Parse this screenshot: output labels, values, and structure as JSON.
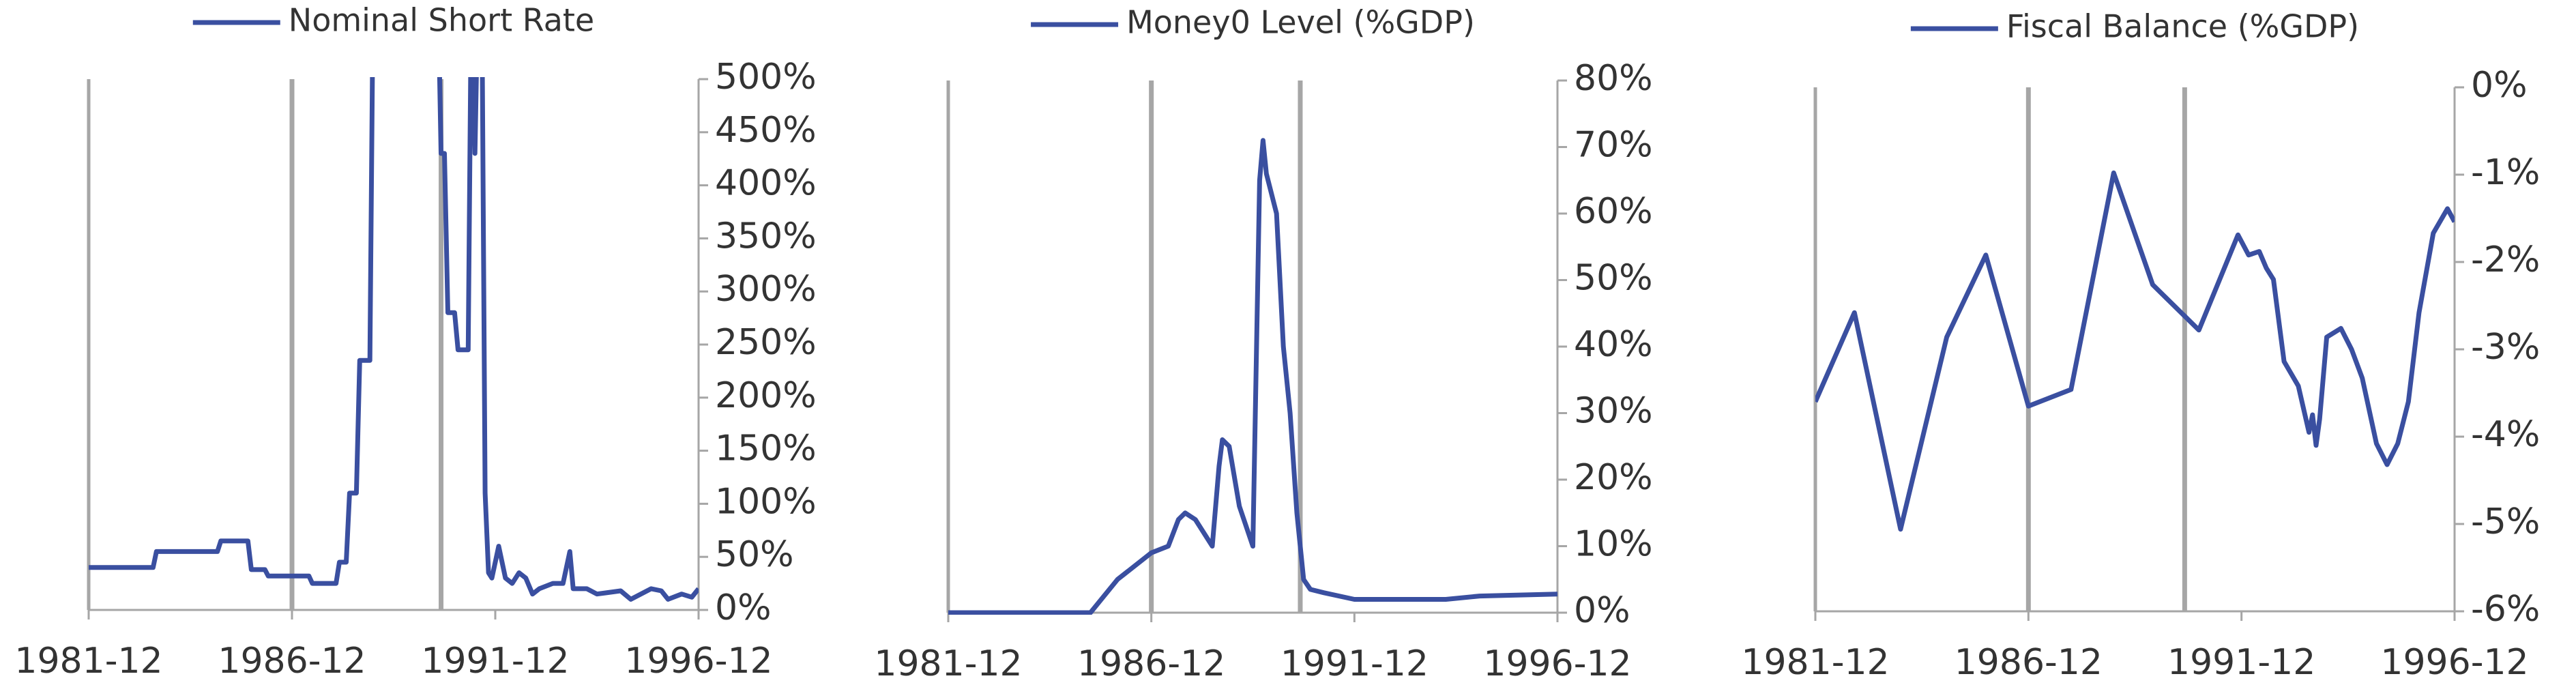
{
  "chart_data": [
    {
      "type": "line",
      "xlim": [
        "1981-12",
        "1996-12"
      ],
      "xticks": [
        "1981-12",
        "1986-12",
        "1991-12",
        "1996-12"
      ],
      "ylim": [
        0,
        500
      ],
      "yticks": [
        {
          "value": 0,
          "label": "0%"
        },
        {
          "value": 50,
          "label": "50%"
        },
        {
          "value": 100,
          "label": "100%"
        },
        {
          "value": 150,
          "label": "150%"
        },
        {
          "value": 200,
          "label": "200%"
        },
        {
          "value": 250,
          "label": "250%"
        },
        {
          "value": 300,
          "label": "300%"
        },
        {
          "value": 350,
          "label": "350%"
        },
        {
          "value": 400,
          "label": "400%"
        },
        {
          "value": 450,
          "label": "450%"
        },
        {
          "value": 500,
          "label": "500%"
        }
      ],
      "vlines": [
        "1986-12",
        "1990-08"
      ],
      "series": [
        {
          "name": "Nominal Short Rate",
          "color": "#3a4fa0",
          "x": [
            "1981-12",
            "1983-07",
            "1983-08",
            "1985-02",
            "1985-03",
            "1985-11",
            "1985-12",
            "1986-04",
            "1986-05",
            "1987-05",
            "1987-06",
            "1988-01",
            "1988-02",
            "1988-04",
            "1988-05",
            "1988-07",
            "1988-08",
            "1988-11",
            "1988-12",
            "1990-07",
            "1990-08",
            "1990-09",
            "1990-10",
            "1990-12",
            "1991-01",
            "1991-04",
            "1991-05",
            "1991-06",
            "1991-07",
            "1991-08",
            "1991-09",
            "1991-10",
            "1991-11",
            "1992-01",
            "1992-03",
            "1992-05",
            "1992-07",
            "1992-09",
            "1992-11",
            "1993-01",
            "1993-05",
            "1993-08",
            "1993-10",
            "1993-11",
            "1994-03",
            "1994-06",
            "1995-01",
            "1995-04",
            "1995-10",
            "1996-01",
            "1996-03",
            "1996-07",
            "1996-10",
            "1996-12"
          ],
          "values": [
            40,
            40,
            55,
            55,
            65,
            65,
            38,
            38,
            32,
            32,
            25,
            25,
            45,
            45,
            110,
            110,
            235,
            235,
            600,
            600,
            430,
            430,
            280,
            280,
            245,
            245,
            600,
            430,
            600,
            600,
            110,
            35,
            30,
            60,
            30,
            25,
            35,
            30,
            15,
            20,
            25,
            25,
            55,
            20,
            20,
            15,
            18,
            10,
            20,
            18,
            10,
            15,
            12,
            20
          ]
        }
      ]
    },
    {
      "type": "line",
      "xlim": [
        "1981-12",
        "1996-12"
      ],
      "xticks": [
        "1981-12",
        "1986-12",
        "1991-12",
        "1996-12"
      ],
      "ylim": [
        0,
        80
      ],
      "yticks": [
        {
          "value": 0,
          "label": "0%"
        },
        {
          "value": 10,
          "label": "10%"
        },
        {
          "value": 20,
          "label": "20%"
        },
        {
          "value": 30,
          "label": "30%"
        },
        {
          "value": 40,
          "label": "40%"
        },
        {
          "value": 50,
          "label": "50%"
        },
        {
          "value": 60,
          "label": "60%"
        },
        {
          "value": 70,
          "label": "70%"
        },
        {
          "value": 80,
          "label": "80%"
        }
      ],
      "vlines": [
        "1986-12",
        "1990-08"
      ],
      "series": [
        {
          "name": "Money0 Level (%GDP)",
          "color": "#3a4fa0",
          "x": [
            "1981-12",
            "1985-06",
            "1986-02",
            "1986-12",
            "1987-05",
            "1987-08",
            "1987-10",
            "1988-01",
            "1988-06",
            "1988-08",
            "1988-09",
            "1988-11",
            "1989-02",
            "1989-06",
            "1989-08",
            "1989-09",
            "1989-10",
            "1990-01",
            "1990-03",
            "1990-05",
            "1990-07",
            "1990-09",
            "1990-11",
            "1991-03",
            "1991-12",
            "1994-03",
            "1995-01",
            "1996-12"
          ],
          "values": [
            0,
            0,
            5,
            9,
            10,
            14,
            15,
            14,
            10,
            22,
            26,
            25,
            16,
            10,
            65,
            71,
            66,
            60,
            40,
            30,
            15,
            5,
            3.5,
            3,
            2,
            2,
            2.5,
            2.8
          ]
        }
      ]
    },
    {
      "type": "line",
      "xlim": [
        "1981-12",
        "1996-12"
      ],
      "xticks": [
        "1981-12",
        "1986-12",
        "1991-12",
        "1996-12"
      ],
      "ylim": [
        -6,
        0
      ],
      "yticks": [
        {
          "value": -6,
          "label": "-6%"
        },
        {
          "value": -5,
          "label": "-5%"
        },
        {
          "value": -4,
          "label": "-4%"
        },
        {
          "value": -3,
          "label": "-3%"
        },
        {
          "value": -2,
          "label": "-2%"
        },
        {
          "value": -1,
          "label": "-1%"
        },
        {
          "value": 0,
          "label": "0%"
        }
      ],
      "vlines": [
        "1986-12",
        "1990-08"
      ],
      "series": [
        {
          "name": "Fiscal Balance (%GDP)",
          "color": "#3a4fa0",
          "x": [
            "1981-12",
            "1982-11",
            "1983-12",
            "1985-01",
            "1985-12",
            "1986-12",
            "1987-12",
            "1988-12",
            "1989-11",
            "1990-12",
            "1991-11",
            "1992-02",
            "1992-05",
            "1992-07",
            "1992-09",
            "1992-12",
            "1993-04",
            "1993-07",
            "1993-08",
            "1993-09",
            "1993-10",
            "1993-12",
            "1994-04",
            "1994-07",
            "1994-10",
            "1995-02",
            "1995-05",
            "1995-08",
            "1995-11",
            "1996-02",
            "1996-06",
            "1996-10",
            "1996-12"
          ],
          "values": [
            -3.6,
            -2.58,
            -5.06,
            -2.86,
            -1.92,
            -3.65,
            -3.46,
            -0.98,
            -2.26,
            -2.78,
            -1.69,
            -1.92,
            -1.88,
            -2.07,
            -2.2,
            -3.14,
            -3.42,
            -3.95,
            -3.75,
            -4.1,
            -3.8,
            -2.86,
            -2.76,
            -3.0,
            -3.33,
            -4.08,
            -4.32,
            -4.08,
            -3.6,
            -2.58,
            -1.67,
            -1.39,
            -1.54
          ]
        }
      ]
    }
  ]
}
